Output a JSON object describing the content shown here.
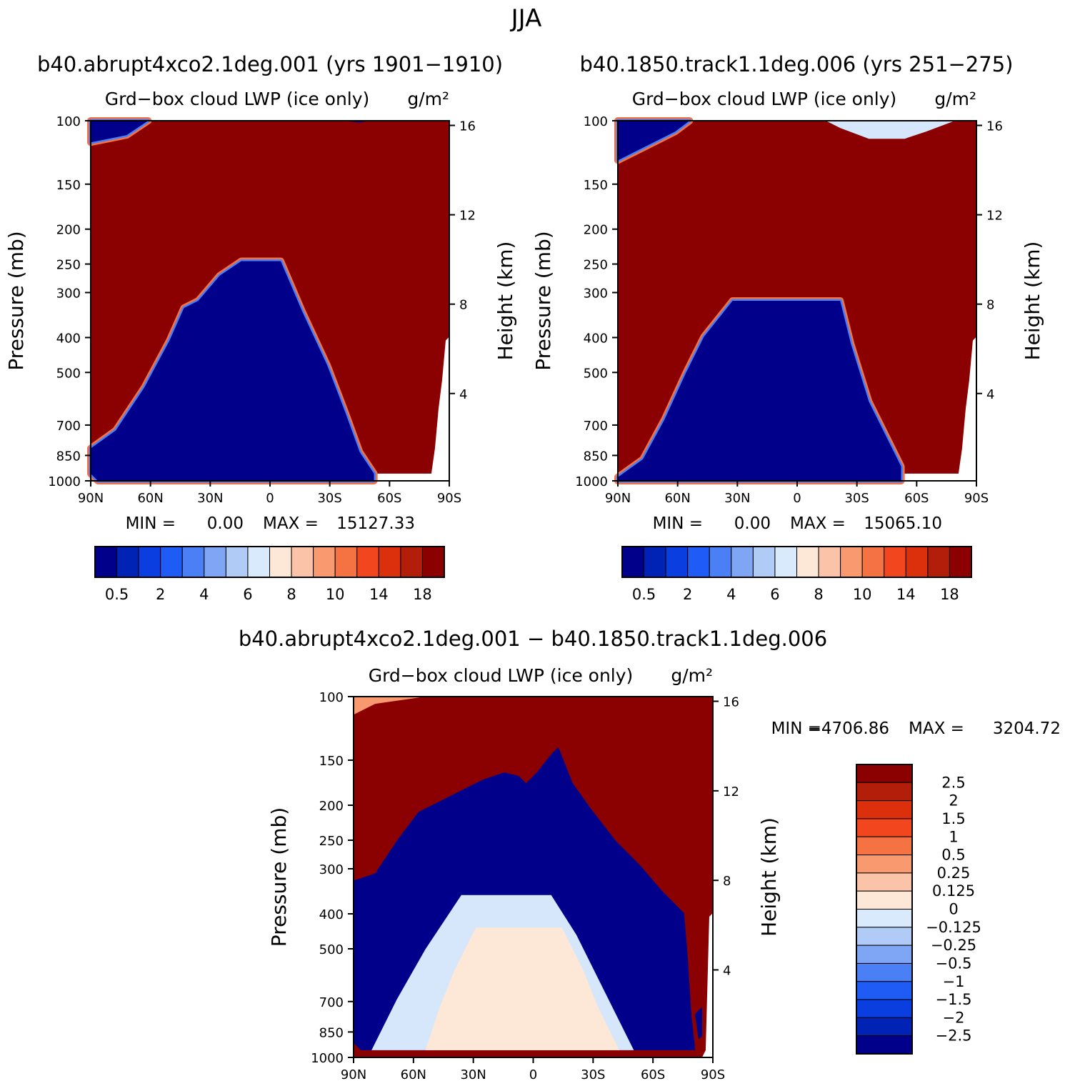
{
  "page_title": "JJA",
  "colors": {
    "dark_red": "#8b0000",
    "dark_blue": "#00008b",
    "light_blue": "#d6e6fb",
    "peach": "#fde7d6"
  },
  "chart_data": [
    {
      "type": "heatmap",
      "title": "b40.abrupt4xco2.1deg.001 (yrs 1901−1910)",
      "subtitle": "Grd−box cloud LWP (ice only)",
      "units": "g/m²",
      "ylabel": "Pressure (mb)",
      "ylabel_right": "Height (km)",
      "xticks": [
        "90N",
        "60N",
        "30N",
        "0",
        "30S",
        "60S",
        "90S"
      ],
      "yticks": [
        "100",
        "150",
        "200",
        "250",
        "300",
        "400",
        "500",
        "700",
        "850",
        "1000"
      ],
      "height_ticks": [
        "16",
        "12",
        "8",
        "4"
      ],
      "min_label": "MIN =",
      "min_value": "0.00",
      "max_label": "MAX =",
      "max_value": "15127.33",
      "colorbar_labels": [
        "0.5",
        "2",
        "4",
        "6",
        "8",
        "10",
        "14",
        "18"
      ],
      "colorbar_colors": [
        "#00008b",
        "#0023b5",
        "#0b3ee0",
        "#1f5cf5",
        "#4a7ff5",
        "#7ea6f5",
        "#b1cbf7",
        "#d9eafc",
        "#fde7d6",
        "#fbc4a8",
        "#f8996f",
        "#f57243",
        "#f2461f",
        "#dc2f0c",
        "#b21e09",
        "#8b0000"
      ]
    },
    {
      "type": "heatmap",
      "title": "b40.1850.track1.1deg.006 (yrs 251−275)",
      "subtitle": "Grd−box cloud LWP (ice only)",
      "units": "g/m²",
      "ylabel": "Pressure (mb)",
      "ylabel_right": "Height (km)",
      "xticks": [
        "90N",
        "60N",
        "30N",
        "0",
        "30S",
        "60S",
        "90S"
      ],
      "yticks": [
        "100",
        "150",
        "200",
        "250",
        "300",
        "400",
        "500",
        "700",
        "850",
        "1000"
      ],
      "height_ticks": [
        "16",
        "12",
        "8",
        "4"
      ],
      "min_label": "MIN =",
      "min_value": "0.00",
      "max_label": "MAX =",
      "max_value": "15065.10",
      "colorbar_labels": [
        "0.5",
        "2",
        "4",
        "6",
        "8",
        "10",
        "14",
        "18"
      ],
      "colorbar_colors": [
        "#00008b",
        "#0023b5",
        "#0b3ee0",
        "#1f5cf5",
        "#4a7ff5",
        "#7ea6f5",
        "#b1cbf7",
        "#d9eafc",
        "#fde7d6",
        "#fbc4a8",
        "#f8996f",
        "#f57243",
        "#f2461f",
        "#dc2f0c",
        "#b21e09",
        "#8b0000"
      ]
    },
    {
      "type": "heatmap",
      "title": "b40.abrupt4xco2.1deg.001 − b40.1850.track1.1deg.006",
      "subtitle": "Grd−box cloud LWP (ice only)",
      "units": "g/m²",
      "ylabel": "Pressure (mb)",
      "ylabel_right": "Height (km)",
      "xticks": [
        "90N",
        "60N",
        "30N",
        "0",
        "30S",
        "60S",
        "90S"
      ],
      "yticks": [
        "100",
        "150",
        "200",
        "250",
        "300",
        "400",
        "500",
        "700",
        "850",
        "1000"
      ],
      "height_ticks": [
        "16",
        "12",
        "8",
        "4"
      ],
      "min_label": "MIN =",
      "min_value": "−4706.86",
      "max_label": "MAX =",
      "max_value": "3204.72",
      "colorbar_labels": [
        "2.5",
        "2",
        "1.5",
        "1",
        "0.5",
        "0.25",
        "0.125",
        "0",
        "−0.125",
        "−0.25",
        "−0.5",
        "−1",
        "−1.5",
        "−2",
        "−2.5"
      ],
      "colorbar_colors": [
        "#8b0000",
        "#b21e09",
        "#dc2f0c",
        "#f2461f",
        "#f57243",
        "#f8996f",
        "#fbc4a8",
        "#fde7d6",
        "#d9eafc",
        "#b1cbf7",
        "#7ea6f5",
        "#4a7ff5",
        "#1f5cf5",
        "#0b3ee0",
        "#0023b5",
        "#00008b"
      ]
    }
  ]
}
